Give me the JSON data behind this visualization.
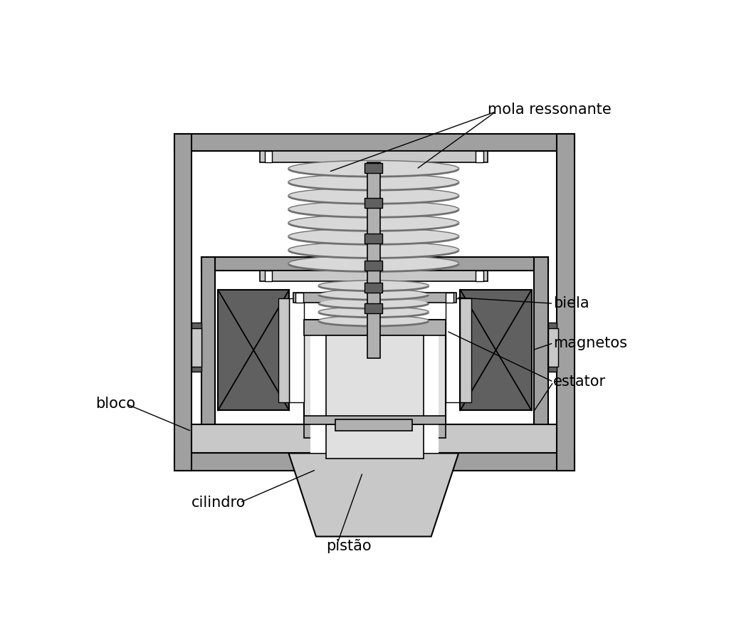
{
  "bg_color": "#ffffff",
  "col_frame": "#a0a0a0",
  "col_light": "#c8c8c8",
  "col_mid": "#b0b0b0",
  "col_dark": "#606060",
  "col_vlight": "#e0e0e0",
  "col_white": "#ffffff",
  "col_black": "#000000",
  "col_spring_fill": "#d8d8d8",
  "col_spring_edge": "#707070",
  "labels": {
    "mola_ressonante": "mola ressonante",
    "biela": "biela",
    "magnetos": "magnetos",
    "estator": "estator",
    "bloco": "bloco",
    "cilindro": "cilindro",
    "pistao": "pistão"
  },
  "font_size": 15
}
